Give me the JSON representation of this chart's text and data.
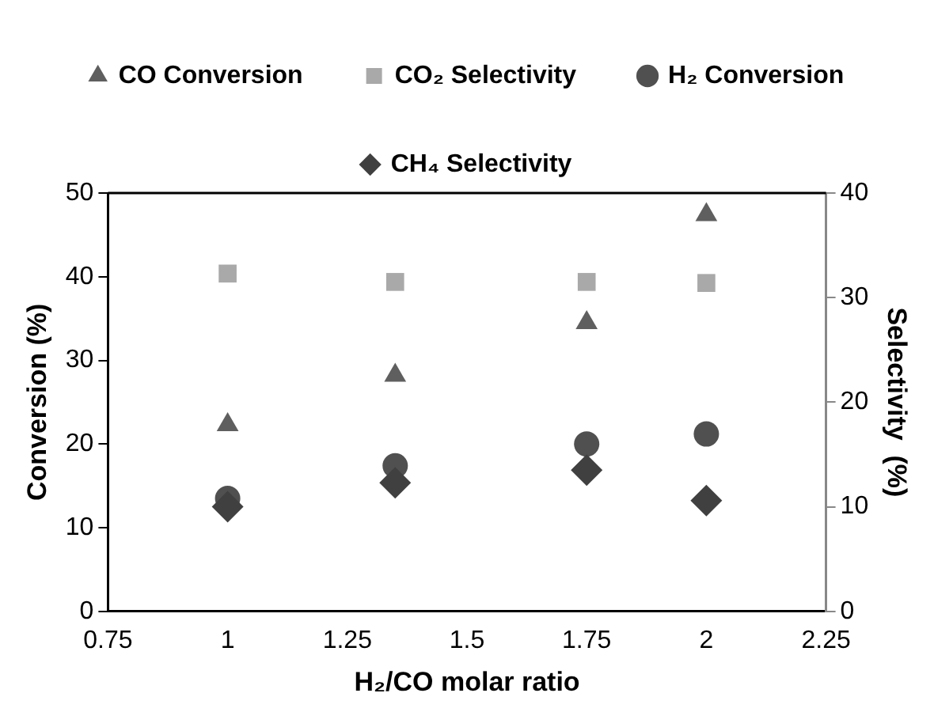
{
  "chart_data": {
    "type": "scatter",
    "xlabel": "H₂/CO molar ratio",
    "ylabel": "Conversion (%)",
    "y2label": "Selectivity  (%)",
    "x": [
      1,
      1.35,
      1.75,
      2
    ],
    "series": [
      {
        "name": "CO Conversion",
        "color": "#5f5f5f",
        "marker": "triangle",
        "values": [
          22.3,
          28.2,
          34.5,
          47.4
        ]
      },
      {
        "name": "CO₂ Selectivity",
        "color": "#a9a9a9",
        "marker": "square",
        "axis": "y2",
        "values": [
          32.3,
          31.5,
          31.5,
          31.4
        ]
      },
      {
        "name": "H₂ Conversion",
        "color": "#505050",
        "marker": "circle",
        "values": [
          13.5,
          17.4,
          20,
          21.2
        ]
      },
      {
        "name": "CH₄ Selectivity",
        "color": "#404040",
        "marker": "diamond",
        "axis": "y2",
        "values": [
          10,
          12.3,
          13.5,
          10.6
        ]
      }
    ],
    "xlim": [
      0.75,
      2.25
    ],
    "xticks": [
      0.75,
      1,
      1.25,
      1.5,
      1.75,
      2,
      2.25
    ],
    "ylim": [
      0,
      50
    ],
    "yticks": [
      0,
      10,
      20,
      30,
      40,
      50
    ],
    "y2lim": [
      0,
      40
    ],
    "y2ticks": [
      0,
      10,
      20,
      30,
      40
    ],
    "grid": false,
    "legend": "top"
  }
}
